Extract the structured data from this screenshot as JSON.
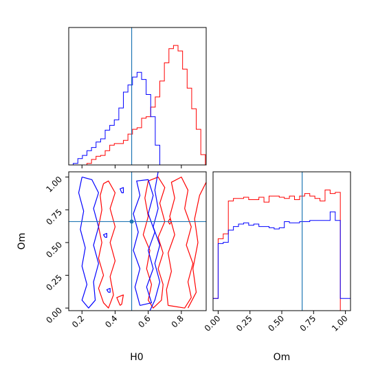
{
  "chart_data": {
    "type": "corner",
    "parameters": [
      "H0",
      "Om"
    ],
    "truth": {
      "H0": 0.5,
      "Om": 0.66
    },
    "colors": {
      "series_a": "#ff0000",
      "series_b": "#0000ff",
      "truth": "#1f77b4"
    },
    "grid": false,
    "panels": {
      "h0_hist": {
        "type": "histogram",
        "xlim": [
          0.12,
          0.95
        ],
        "xticks": [
          0.2,
          0.4,
          0.6,
          0.8
        ],
        "bins": [
          0.12,
          0.1475,
          0.175,
          0.2025,
          0.23,
          0.2575,
          0.285,
          0.3125,
          0.34,
          0.3675,
          0.395,
          0.4225,
          0.45,
          0.4775,
          0.505,
          0.5325,
          0.56,
          0.5875,
          0.615,
          0.6425,
          0.67,
          0.6975,
          0.725,
          0.7525,
          0.78,
          0.8075,
          0.835,
          0.8625,
          0.89,
          0.9175,
          0.945
        ],
        "series": [
          {
            "values": [
              0,
              0,
              0,
              0,
              2,
              7,
              11,
              12,
              18,
              25,
              27,
              27,
              31,
              39,
              45,
              47,
              59,
              61,
              73,
              86,
              106,
              129,
              147,
              151,
              144,
              121,
              97,
              71,
              45,
              13
            ]
          },
          {
            "values": [
              0,
              2,
              8,
              12,
              18,
              22,
              29,
              33,
              44,
              50,
              57,
              72,
              92,
              101,
              111,
              117,
              108,
              89,
              61,
              25,
              0,
              0,
              0,
              0,
              0,
              0,
              0,
              0,
              0,
              0
            ]
          }
        ]
      },
      "om_hist": {
        "type": "histogram",
        "xlim": [
          -0.04,
          1.04
        ],
        "xticks": [
          0.0,
          0.25,
          0.5,
          0.75,
          1.0
        ],
        "xtick_labels": [
          "0.00",
          "0.25",
          "0.50",
          "0.75",
          "1.00"
        ],
        "bins": [
          -0.04,
          0.0,
          0.04,
          0.08,
          0.12,
          0.16,
          0.2,
          0.24,
          0.28,
          0.32,
          0.36,
          0.4,
          0.44,
          0.48,
          0.52,
          0.56,
          0.6,
          0.64,
          0.68,
          0.72,
          0.76,
          0.8,
          0.84,
          0.88,
          0.92,
          0.96,
          1.0,
          1.04
        ],
        "series": [
          {
            "values": [
              10,
              59,
              63,
              90,
              92,
              92,
              93,
              91,
              91,
              93,
              89,
              94,
              94,
              93,
              92,
              94,
              91,
              94,
              96,
              94,
              92,
              90,
              99,
              96,
              97,
              0,
              0
            ]
          },
          {
            "values": [
              10,
              55,
              56,
              66,
              69,
              71,
              72,
              70,
              71,
              69,
              69,
              68,
              67,
              68,
              73,
              72,
              72,
              73,
              73,
              74,
              74,
              74,
              74,
              81,
              74,
              10,
              10
            ]
          }
        ]
      },
      "joint": {
        "type": "contour",
        "xlim": [
          0.12,
          0.95
        ],
        "ylim": [
          -0.02,
          1.04
        ],
        "xticks": [
          0.2,
          0.4,
          0.6,
          0.8
        ],
        "yticks": [
          0.0,
          0.25,
          0.5,
          0.75,
          1.0
        ],
        "ytick_labels": [
          "0.00",
          "0.25",
          "0.50",
          "0.75",
          "1.00"
        ],
        "xlabel": "H0",
        "ylabel": "Om",
        "series": [
          {
            "contours": [
              [
                [
                  0.33,
                  0.95
                ],
                [
                  0.31,
                  0.86
                ],
                [
                  0.32,
                  0.75
                ],
                [
                  0.3,
                  0.62
                ],
                [
                  0.32,
                  0.5
                ],
                [
                  0.3,
                  0.38
                ],
                [
                  0.33,
                  0.25
                ],
                [
                  0.3,
                  0.15
                ],
                [
                  0.33,
                  0.04
                ],
                [
                  0.36,
                  0.0
                ],
                [
                  0.39,
                  0.1
                ],
                [
                  0.37,
                  0.24
                ],
                [
                  0.4,
                  0.36
                ],
                [
                  0.37,
                  0.5
                ],
                [
                  0.4,
                  0.62
                ],
                [
                  0.37,
                  0.76
                ],
                [
                  0.4,
                  0.88
                ],
                [
                  0.36,
                  0.97
                ],
                [
                  0.33,
                  0.95
                ]
              ],
              [
                [
                  0.6,
                  0.97
                ],
                [
                  0.58,
                  0.84
                ],
                [
                  0.6,
                  0.7
                ],
                [
                  0.57,
                  0.56
                ],
                [
                  0.61,
                  0.44
                ],
                [
                  0.59,
                  0.3
                ],
                [
                  0.62,
                  0.18
                ],
                [
                  0.6,
                  0.06
                ],
                [
                  0.63,
                  0.0
                ],
                [
                  0.68,
                  0.06
                ],
                [
                  0.69,
                  0.18
                ],
                [
                  0.66,
                  0.3
                ],
                [
                  0.69,
                  0.42
                ],
                [
                  0.66,
                  0.54
                ],
                [
                  0.7,
                  0.66
                ],
                [
                  0.67,
                  0.8
                ],
                [
                  0.7,
                  0.92
                ],
                [
                  0.66,
                  1.0
                ],
                [
                  0.6,
                  0.97
                ]
              ],
              [
                [
                  0.72,
                  0.02
                ],
                [
                  0.71,
                  0.14
                ],
                [
                  0.74,
                  0.28
                ],
                [
                  0.72,
                  0.42
                ],
                [
                  0.76,
                  0.56
                ],
                [
                  0.73,
                  0.7
                ],
                [
                  0.76,
                  0.84
                ],
                [
                  0.74,
                  0.96
                ],
                [
                  0.8,
                  1.0
                ],
                [
                  0.84,
                  0.9
                ],
                [
                  0.82,
                  0.76
                ],
                [
                  0.86,
                  0.62
                ],
                [
                  0.83,
                  0.48
                ],
                [
                  0.87,
                  0.34
                ],
                [
                  0.84,
                  0.2
                ],
                [
                  0.86,
                  0.08
                ],
                [
                  0.82,
                  0.0
                ],
                [
                  0.72,
                  0.02
                ]
              ],
              [
                [
                  0.84,
                  0.0
                ],
                [
                  0.89,
                  0.12
                ],
                [
                  0.87,
                  0.3
                ],
                [
                  0.9,
                  0.5
                ],
                [
                  0.88,
                  0.68
                ],
                [
                  0.91,
                  0.86
                ],
                [
                  0.95,
                  0.96
                ]
              ],
              [
                [
                  0.43,
                  0.02
                ],
                [
                  0.41,
                  0.08
                ],
                [
                  0.45,
                  0.1
                ],
                [
                  0.44,
                  0.03
                ],
                [
                  0.43,
                  0.02
                ]
              ],
              [
                [
                  0.72,
                  0.66
                ],
                [
                  0.73,
                  0.68
                ],
                [
                  0.74,
                  0.66
                ],
                [
                  0.73,
                  0.64
                ],
                [
                  0.72,
                  0.66
                ]
              ]
            ]
          },
          {
            "contours": [
              [
                [
                  0.2,
                  1.0
                ],
                [
                  0.18,
                  0.88
                ],
                [
                  0.21,
                  0.74
                ],
                [
                  0.19,
                  0.6
                ],
                [
                  0.22,
                  0.46
                ],
                [
                  0.2,
                  0.32
                ],
                [
                  0.23,
                  0.18
                ],
                [
                  0.2,
                  0.06
                ],
                [
                  0.24,
                  0.0
                ],
                [
                  0.28,
                  0.06
                ],
                [
                  0.27,
                  0.2
                ],
                [
                  0.3,
                  0.34
                ],
                [
                  0.27,
                  0.48
                ],
                [
                  0.3,
                  0.62
                ],
                [
                  0.27,
                  0.76
                ],
                [
                  0.3,
                  0.88
                ],
                [
                  0.26,
                  0.98
                ],
                [
                  0.2,
                  1.0
                ]
              ],
              [
                [
                  0.55,
                  0.02
                ],
                [
                  0.52,
                  0.16
                ],
                [
                  0.55,
                  0.3
                ],
                [
                  0.51,
                  0.44
                ],
                [
                  0.54,
                  0.58
                ],
                [
                  0.51,
                  0.72
                ],
                [
                  0.55,
                  0.86
                ],
                [
                  0.53,
                  0.97
                ],
                [
                  0.6,
                  0.98
                ],
                [
                  0.63,
                  0.86
                ],
                [
                  0.6,
                  0.72
                ],
                [
                  0.64,
                  0.58
                ],
                [
                  0.6,
                  0.44
                ],
                [
                  0.63,
                  0.3
                ],
                [
                  0.59,
                  0.16
                ],
                [
                  0.62,
                  0.04
                ],
                [
                  0.55,
                  0.02
                ]
              ],
              [
                [
                  0.66,
                  1.04
                ],
                [
                  0.64,
                  0.9
                ],
                [
                  0.66,
                  0.76
                ],
                [
                  0.63,
                  0.62
                ],
                [
                  0.67,
                  0.48
                ],
                [
                  0.64,
                  0.34
                ],
                [
                  0.67,
                  0.2
                ],
                [
                  0.64,
                  0.06
                ],
                [
                  0.61,
                  -0.02
                ]
              ],
              [
                [
                  0.44,
                  0.88
                ],
                [
                  0.43,
                  0.91
                ],
                [
                  0.45,
                  0.92
                ],
                [
                  0.45,
                  0.88
                ],
                [
                  0.44,
                  0.88
                ]
              ],
              [
                [
                  0.34,
                  0.54
                ],
                [
                  0.33,
                  0.56
                ],
                [
                  0.35,
                  0.57
                ],
                [
                  0.35,
                  0.54
                ],
                [
                  0.34,
                  0.54
                ]
              ],
              [
                [
                  0.36,
                  0.12
                ],
                [
                  0.35,
                  0.14
                ],
                [
                  0.37,
                  0.15
                ],
                [
                  0.37,
                  0.12
                ],
                [
                  0.36,
                  0.12
                ]
              ]
            ]
          }
        ]
      }
    }
  }
}
